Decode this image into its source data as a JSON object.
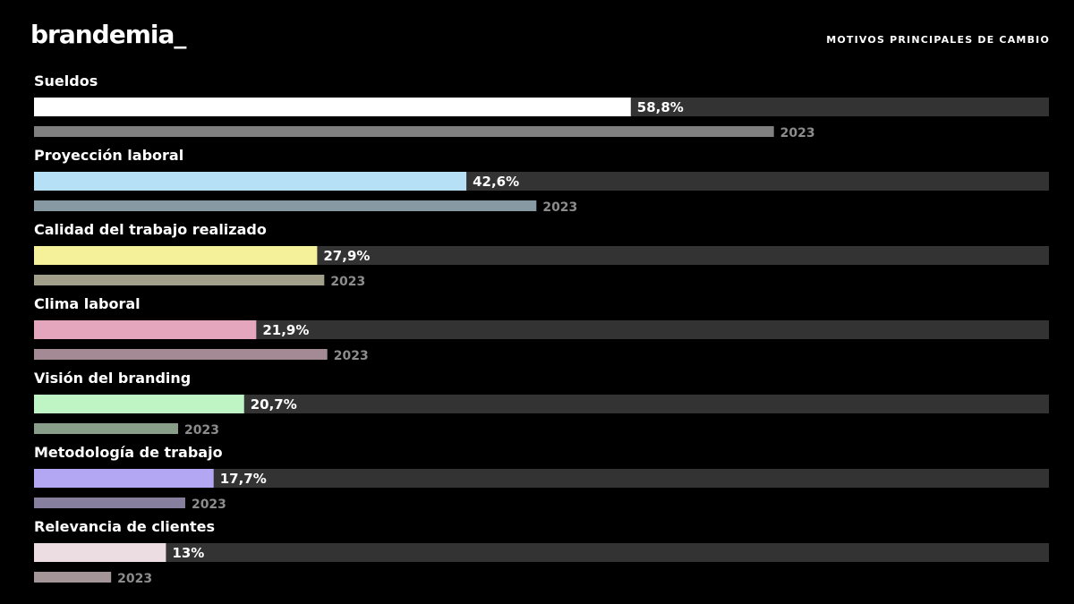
{
  "header": {
    "logo": "brandemia_",
    "title": "MOTIVOS PRINCIPALES DE CAMBIO"
  },
  "chart_data": {
    "type": "bar",
    "orientation": "horizontal",
    "xlim": [
      0,
      100
    ],
    "track_color": "#333333",
    "categories": [
      "Sueldos",
      "Proyección laboral",
      "Calidad del trabajo realizado",
      "Clima laboral",
      "Visión del branding",
      "Metodología de trabajo",
      "Relevancia de clientes"
    ],
    "value_labels": [
      "58,8%",
      "42,6%",
      "27,9%",
      "21,9%",
      "20,7%",
      "17,7%",
      "13%"
    ],
    "comparison_label": "2023",
    "series": [
      {
        "values": [
          58.8,
          42.6,
          27.9,
          21.9,
          20.7,
          17.7,
          13.0
        ],
        "colors": [
          "#ffffff",
          "#b5e0f5",
          "#f5f09a",
          "#e4a6bd",
          "#bff5c4",
          "#b3a6f2",
          "#ecdde2"
        ]
      },
      {
        "name": "2023",
        "values": [
          72.9,
          49.5,
          28.6,
          28.9,
          14.2,
          14.9,
          7.6
        ],
        "colors": [
          "#808080",
          "#879aa4",
          "#a2a08a",
          "#a38a94",
          "#889e89",
          "#86809e",
          "#a39598"
        ]
      }
    ]
  }
}
